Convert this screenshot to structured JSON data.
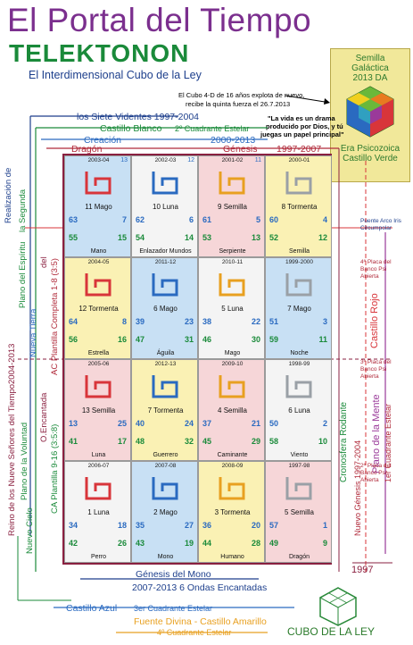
{
  "header": {
    "title": "El Portal del Tiempo",
    "subtitle": "TELEKTONON",
    "subtitle2": "El Interdimensional Cubo de la Ley"
  },
  "badge": {
    "line1": "Semilla",
    "line2": "Galáctica",
    "line3": "2013 DA",
    "line4": "Era Psicozoica",
    "line5": "Castillo Verde"
  },
  "notes": {
    "cube_note_1": "El Cubo 4-D de 16 años explota de nuevo,",
    "cube_note_2": "recibe la quinta fuerza el 26.7.2013",
    "quote_1": "\"La vida es un drama",
    "quote_2": "producido por Dios, y tú",
    "quote_3": "juegas un papel principal\""
  },
  "top_labels": {
    "videntes": "los Siete Videntes   1997-2004",
    "castillo_blanco": "Castillo Blanco",
    "cuadrante2": "2º Cuadrante Estelar",
    "creacion": "Creación",
    "years_2000": "2000-2013",
    "dragon": "Dragón",
    "genesis": "Génesis",
    "years_1997": "1997-2007"
  },
  "left_labels": {
    "realizacion": "Realización de",
    "espiritu": "Plano del Espíritu",
    "segunda": "la Segunda",
    "nueva_tierra": "Nueva Tierra",
    "del": "del",
    "ac": "AC Plantilla Completa 1-8 (3:5)",
    "y2004": "2004-2013",
    "reino": "Reino de los Nueve Señores del Tiempo",
    "voluntad": "Plano de la Voluntad",
    "encantada": "O.Encantada",
    "ca": "CA Plantilla 9-16 (3:5:8)",
    "nuevo_cielo": "Nuevo Cielo"
  },
  "right_labels": {
    "puente": "Puente Arco Iris",
    "circumpolar": "Circumpolar",
    "placa4_1": "4ª Placa del",
    "placa4_2": "Banco Psi",
    "placa4_3": "Abierta",
    "castillo_rojo": "Castillo Rojo",
    "placa3_1": "3ª Placa del",
    "placa3_2": "Banco Psi",
    "placa3_3": "Abierta",
    "mente": "Plano de la Mente",
    "cuadrante1": "1er Cuadrante Estelar",
    "cronosfera": "Cronosfera Rodante",
    "nuevo_genesis": "Nuevo Génesis  1997-2004",
    "placa2_1": "2ª Placa del",
    "placa2_2": "Banco Psi",
    "placa2_3": "Abierta",
    "y1997": "1997"
  },
  "bottom_labels": {
    "genesis_mono": "Génesis del Mono",
    "ondas": "2007-2013 6 Ondas Encantadas",
    "castillo_azul": "Castillo Azul",
    "cuadrante3": "3er Cuadrante Estelar",
    "fuente": "Fuente Divina - Castillo Amarillo",
    "cuadrante4": "4º Cuadrante Estelar"
  },
  "footer": "CUBO DE LA LEY",
  "colors": {
    "red": "#d8353a",
    "white": "#f4f4f4",
    "blue": "#c8e0f4",
    "yellow": "#faf1b4",
    "pink": "#f6d6d8",
    "green": "#e3efc9"
  },
  "cells": [
    {
      "yr": "2003-04",
      "tn": "13",
      "name": "11 Mago",
      "label": "Mano",
      "tl": "63",
      "tr": "7",
      "bl": "55",
      "br": "15",
      "bg": "#c8e0f4"
    },
    {
      "yr": "2002-03",
      "tn": "12",
      "name": "10 Luna",
      "label": "Enlazador Mundos",
      "tl": "62",
      "tr": "6",
      "bl": "54",
      "br": "14",
      "bg": "#f4f4f4"
    },
    {
      "yr": "2001-02",
      "tn": "11",
      "name": "9 Semilla",
      "label": "Serpiente",
      "tl": "61",
      "tr": "5",
      "bl": "53",
      "br": "13",
      "bg": "#f6d6d8"
    },
    {
      "yr": "2000-01",
      "tn": "",
      "name": "8 Tormenta",
      "label": "Semilla",
      "tl": "60",
      "tr": "4",
      "bl": "52",
      "br": "12",
      "bg": "#faf1b4"
    },
    {
      "yr": "2004-05",
      "tn": "",
      "name": "12 Tormenta",
      "label": "Estrella",
      "tl": "64",
      "tr": "8",
      "bl": "56",
      "br": "16",
      "bg": "#faf1b4"
    },
    {
      "yr": "2011-12",
      "tn": "",
      "name": "6 Mago",
      "label": "Águila",
      "tl": "39",
      "tr": "23",
      "bl": "47",
      "br": "31",
      "bg": "#c8e0f4"
    },
    {
      "yr": "2010-11",
      "tn": "",
      "name": "5 Luna",
      "label": "Mago",
      "tl": "38",
      "tr": "22",
      "bl": "46",
      "br": "30",
      "bg": "#f4f4f4"
    },
    {
      "yr": "1999-2000",
      "tn": "",
      "name": "7 Mago",
      "label": "Noche",
      "tl": "51",
      "tr": "3",
      "bl": "59",
      "br": "11",
      "bg": "#c8e0f4"
    },
    {
      "yr": "2005-06",
      "tn": "",
      "name": "13 Semilla",
      "label": "Luna",
      "tl": "13",
      "tr": "25",
      "bl": "41",
      "br": "17",
      "bg": "#f6d6d8"
    },
    {
      "yr": "2012-13",
      "tn": "",
      "name": "7 Tormenta",
      "label": "Guerrero",
      "tl": "40",
      "tr": "24",
      "bl": "48",
      "br": "32",
      "bg": "#faf1b4"
    },
    {
      "yr": "2009-10",
      "tn": "",
      "name": "4 Semilla",
      "label": "Caminante",
      "tl": "37",
      "tr": "21",
      "bl": "45",
      "br": "29",
      "bg": "#f6d6d8"
    },
    {
      "yr": "1998-99",
      "tn": "",
      "name": "6 Luna",
      "label": "Viento",
      "tl": "50",
      "tr": "2",
      "bl": "58",
      "br": "10",
      "bg": "#f4f4f4"
    },
    {
      "yr": "2006-07",
      "tn": "",
      "name": "1 Luna",
      "label": "Perro",
      "tl": "34",
      "tr": "18",
      "bl": "42",
      "br": "26",
      "bg": "#f4f4f4"
    },
    {
      "yr": "2007-08",
      "tn": "",
      "name": "2 Mago",
      "label": "Mono",
      "tl": "35",
      "tr": "27",
      "bl": "43",
      "br": "19",
      "bg": "#c8e0f4"
    },
    {
      "yr": "2008-09",
      "tn": "",
      "name": "3 Tormenta",
      "label": "Humano",
      "tl": "36",
      "tr": "20",
      "bl": "44",
      "br": "28",
      "bg": "#faf1b4"
    },
    {
      "yr": "1997-98",
      "tn": "",
      "name": "5 Semilla",
      "label": "Dragón",
      "tl": "57",
      "tr": "1",
      "bl": "49",
      "br": "9",
      "bg": "#f6d6d8"
    }
  ]
}
